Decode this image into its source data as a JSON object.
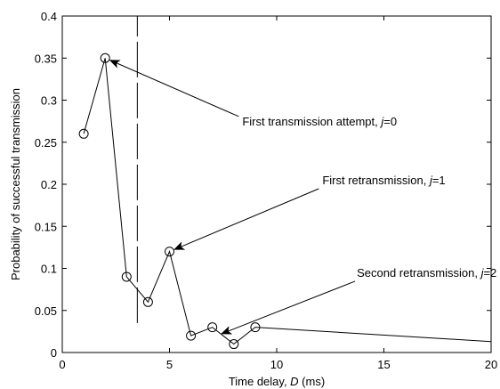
{
  "chart_data": {
    "type": "line",
    "xlabel": "Time delay, D (ms)",
    "xlabel_parts": {
      "prefix": "Time delay, ",
      "var": "D",
      "suffix": " (ms)"
    },
    "ylabel": "Probability of successful transmission",
    "xlim": [
      0,
      20
    ],
    "ylim": [
      0,
      0.4
    ],
    "x_ticks": [
      0,
      5,
      10,
      15,
      20
    ],
    "x_tick_labels": [
      "0",
      "5",
      "10",
      "15",
      "20"
    ],
    "y_ticks": [
      0,
      0.05,
      0.1,
      0.15,
      0.2,
      0.25,
      0.3,
      0.35,
      0.4
    ],
    "y_tick_labels": [
      "0",
      "0.05",
      "0.1",
      "0.15",
      "0.2",
      "0.25",
      "0.3",
      "0.35",
      "0.4"
    ],
    "grid": false,
    "series": [
      {
        "x": [
          1,
          2,
          3,
          4,
          5,
          6,
          7,
          8,
          9,
          20
        ],
        "y": [
          0.26,
          0.35,
          0.09,
          0.06,
          0.12,
          0.02,
          0.03,
          0.01,
          0.03,
          0.013
        ],
        "marker_points": 9,
        "color": "#000000"
      }
    ],
    "vertical_line": {
      "x": 3.5,
      "y_range": [
        0.035,
        0.4
      ],
      "style": "dashed"
    },
    "annotations": [
      {
        "text": "First transmission attempt, ",
        "var": "j",
        "value": "=0",
        "point": [
          2,
          0.35
        ],
        "text_anchor": [
          12,
          0.27
        ]
      },
      {
        "text": "First retransmission, ",
        "var": "j",
        "value": "=1",
        "point": [
          5,
          0.12
        ],
        "text_anchor": [
          15,
          0.2
        ]
      },
      {
        "text": "Second retransmission, ",
        "var": "j",
        "value": "=2",
        "point": [
          7.2,
          0.02
        ],
        "text_anchor": [
          17,
          0.09
        ]
      }
    ]
  }
}
